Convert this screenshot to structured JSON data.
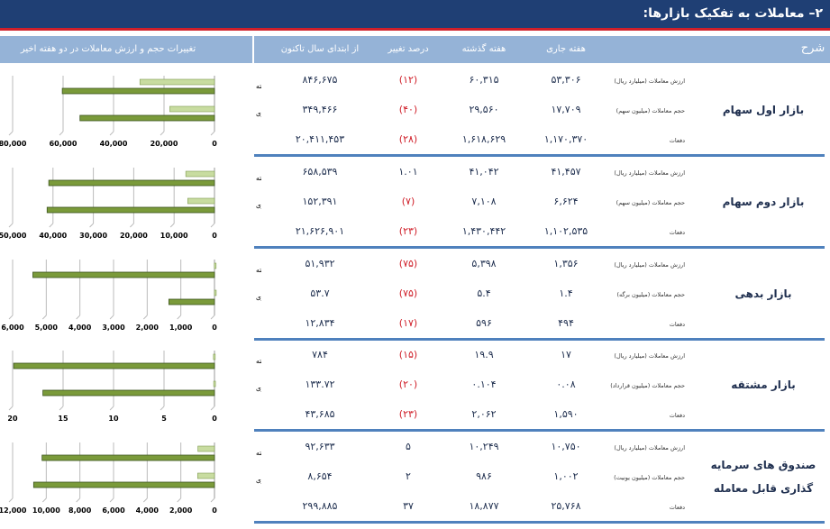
{
  "title": "۲– معاملات به تفکیک بازارها:",
  "header": {
    "desc": "شرح",
    "current": "هفته جاری",
    "previous": "هفته گذشته",
    "change": "درصد تغییر",
    "ytd": "از ابتدای سال تاکنون",
    "chart": "تغییرات حجم و ارزش معاملات در دو هفته اخیر"
  },
  "colors": {
    "title_bg": "#1f3f74",
    "accent_red": "#d0202a",
    "header_bg": "#95b3d7",
    "divider": "#4f81bd",
    "bar_dark": "#7a9a3a",
    "bar_light": "#c8dca0"
  },
  "markets": [
    {
      "name": "بازار اول سهام",
      "rows": [
        {
          "label": "ارزش معاملات (میلیارد ریال)",
          "current": "۵۳,۳۰۶",
          "previous": "۶۰,۳۱۵",
          "change": "(۱۲)",
          "ytd": "۸۴۶,۶۷۵"
        },
        {
          "label": "حجم معاملات (میلیون سهم)",
          "current": "۱۷,۷۰۹",
          "previous": "۲۹,۵۶۰",
          "change": "(۴۰)",
          "ytd": "۳۴۹,۴۶۶"
        },
        {
          "label": "دفعات",
          "current": "۱,۱۷۰,۳۷۰",
          "previous": "۱,۶۱۸,۶۲۹",
          "change": "(۲۸)",
          "ytd": "۲۰,۴۱۱,۴۵۳"
        }
      ]
    },
    {
      "name": "بازار دوم سهام",
      "rows": [
        {
          "label": "ارزش معاملات (میلیارد ریال)",
          "current": "۴۱,۴۵۷",
          "previous": "۴۱,۰۴۲",
          "change": "۱.۰۱",
          "ytd": "۶۵۸,۵۳۹"
        },
        {
          "label": "حجم معاملات (میلیون سهم)",
          "current": "۶,۶۲۴",
          "previous": "۷,۱۰۸",
          "change": "(۷)",
          "ytd": "۱۵۲,۳۹۱"
        },
        {
          "label": "دفعات",
          "current": "۱,۱۰۲,۵۳۵",
          "previous": "۱,۴۳۰,۴۴۲",
          "change": "(۲۳)",
          "ytd": "۲۱,۶۲۶,۹۰۱"
        }
      ]
    },
    {
      "name": "بازار بدهی",
      "rows": [
        {
          "label": "ارزش معاملات (میلیارد ریال)",
          "current": "۱,۳۵۶",
          "previous": "۵,۳۹۸",
          "change": "(۷۵)",
          "ytd": "۵۱,۹۳۲"
        },
        {
          "label": "حجم معاملات (میلیون برگه)",
          "current": "۱.۴",
          "previous": "۵.۴",
          "change": "(۷۵)",
          "ytd": "۵۳.۷"
        },
        {
          "label": "دفعات",
          "current": "۴۹۴",
          "previous": "۵۹۶",
          "change": "(۱۷)",
          "ytd": "۱۲,۸۳۴"
        }
      ]
    },
    {
      "name": "بازار مشتقه",
      "rows": [
        {
          "label": "ارزش معاملات (میلیارد ریال)",
          "current": "۱۷",
          "previous": "۱۹.۹",
          "change": "(۱۵)",
          "ytd": "۷۸۴"
        },
        {
          "label": "حجم معاملات (میلیون قرارداد)",
          "current": "۰.۰۸",
          "previous": "۰.۱۰۴",
          "change": "(۲۰)",
          "ytd": "۱۳۳.۷۲"
        },
        {
          "label": "دفعات",
          "current": "۱,۵۹۰",
          "previous": "۲,۰۶۲",
          "change": "(۲۳)",
          "ytd": "۴۳,۶۸۵"
        }
      ]
    },
    {
      "name": "صندوق های سرمایه گذاری قابل معامله",
      "rows": [
        {
          "label": "ارزش معاملات (میلیارد ریال)",
          "current": "۱۰,۷۵۰",
          "previous": "۱۰,۲۴۹",
          "change": "۵",
          "ytd": "۹۲,۶۳۳"
        },
        {
          "label": "حجم معاملات (میلیون یونیت)",
          "current": "۱,۰۰۲",
          "previous": "۹۸۶",
          "change": "۲",
          "ytd": "۸,۶۵۴"
        },
        {
          "label": "دفعات",
          "current": "۲۵,۷۶۸",
          "previous": "۱۸,۸۷۷",
          "change": "۳۷",
          "ytd": "۲۹۹,۸۸۵"
        }
      ]
    }
  ],
  "chart_data": [
    {
      "type": "bar",
      "orientation": "horizontal",
      "categories": [
        "هفته گذشته",
        "هفته جاری"
      ],
      "series": [
        {
          "values": [
            29560,
            17709
          ]
        },
        {
          "values": [
            60315,
            53306
          ]
        }
      ],
      "xlim": [
        0,
        80000
      ],
      "ticks": [
        "0",
        "20,000",
        "40,000",
        "60,000",
        "80,000"
      ],
      "grid": true
    },
    {
      "type": "bar",
      "orientation": "horizontal",
      "categories": [
        "هفته گذشته",
        "هفته جاری"
      ],
      "series": [
        {
          "values": [
            7108,
            6624
          ]
        },
        {
          "values": [
            41042,
            41457
          ]
        }
      ],
      "xlim": [
        0,
        50000
      ],
      "ticks": [
        "0",
        "10,000",
        "20,000",
        "30,000",
        "40,000",
        "50,000"
      ],
      "grid": true
    },
    {
      "type": "bar",
      "orientation": "horizontal",
      "categories": [
        "هفته گذشته",
        "هفته جاری"
      ],
      "series": [
        {
          "values": [
            5.4,
            1.4
          ]
        },
        {
          "values": [
            5398,
            1356
          ]
        }
      ],
      "xlim": [
        0,
        6000
      ],
      "ticks": [
        "0",
        "1,000",
        "2,000",
        "3,000",
        "4,000",
        "5,000",
        "6,000"
      ],
      "grid": true
    },
    {
      "type": "bar",
      "orientation": "horizontal",
      "categories": [
        "هفته گذشته",
        "هفته جاری"
      ],
      "series": [
        {
          "values": [
            0.104,
            0.08
          ]
        },
        {
          "values": [
            19.9,
            17
          ]
        }
      ],
      "xlim": [
        0,
        20
      ],
      "ticks": [
        "0",
        "5",
        "10",
        "15",
        "20"
      ],
      "grid": true
    },
    {
      "type": "bar",
      "orientation": "horizontal",
      "categories": [
        "هفته گذشته",
        "هفته جاری"
      ],
      "series": [
        {
          "values": [
            986,
            1002
          ]
        },
        {
          "values": [
            10249,
            10750
          ]
        }
      ],
      "xlim": [
        0,
        12000
      ],
      "ticks": [
        "0",
        "2,000",
        "4,000",
        "6,000",
        "8,000",
        "10,000",
        "12,000"
      ],
      "grid": true
    }
  ]
}
